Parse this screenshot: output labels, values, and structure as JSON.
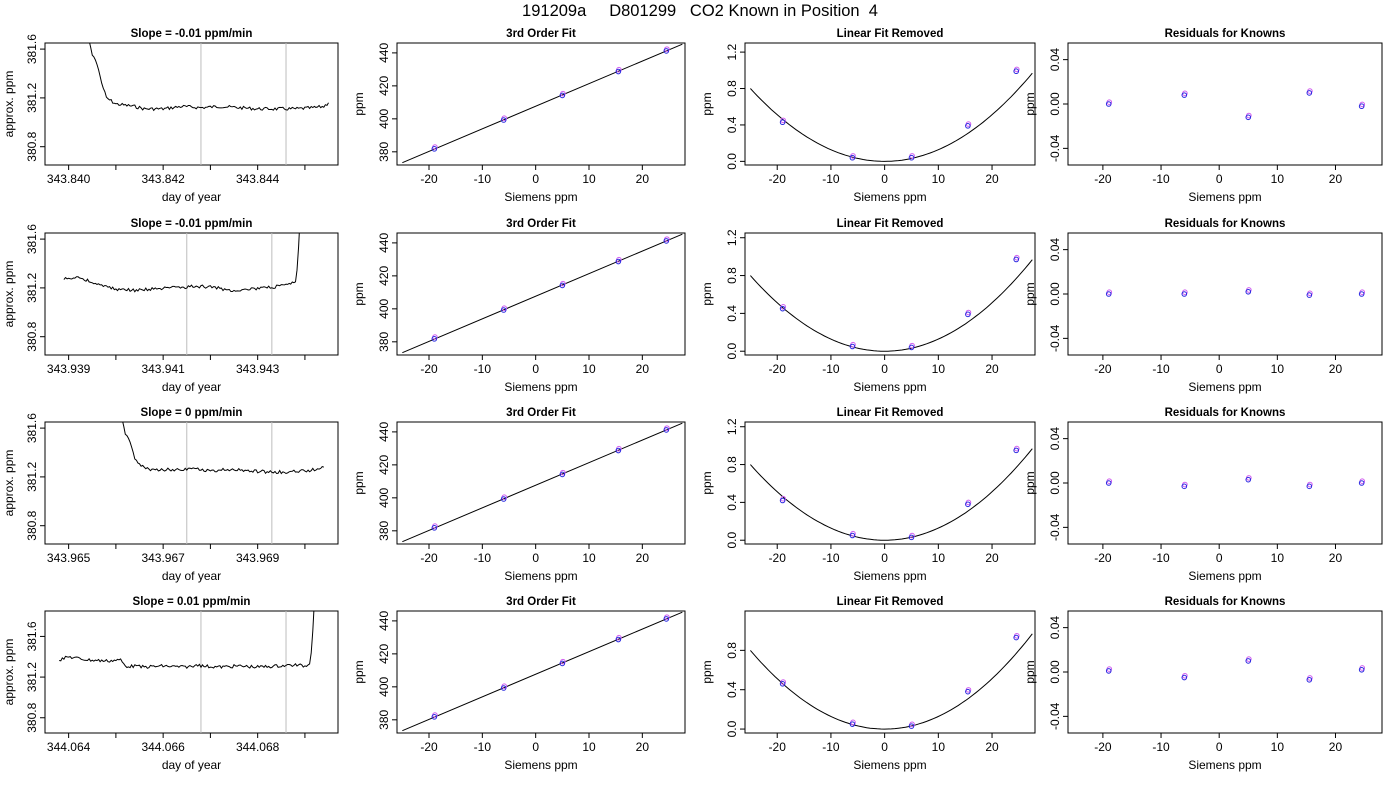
{
  "page": {
    "title": "191209a     D801299   CO2 Known in Position  4"
  },
  "chart_data": [
    {
      "type": "line",
      "title": "Slope =  -0.01  ppm/min",
      "xlabel": "day of year",
      "ylabel": "approx. ppm",
      "xlim": [
        343.8395,
        343.8457
      ],
      "ylim": [
        380.65,
        381.65
      ],
      "xticks": [
        343.84,
        343.841,
        343.842,
        343.843,
        343.844,
        343.845
      ],
      "xtick_labels": [
        "343.840",
        "",
        "343.842",
        "",
        "343.844",
        ""
      ],
      "yticks": [
        380.8,
        381.2,
        381.6
      ],
      "ytick_labels": [
        "380.8",
        "381.2",
        "381.6"
      ],
      "vlines": [
        343.8428,
        343.8446
      ],
      "x": [
        343.8403,
        343.8405,
        343.8407,
        343.8408,
        343.841,
        343.8412,
        343.8414,
        343.8416,
        343.842,
        343.8424,
        343.8428,
        343.8432,
        343.8436,
        343.844,
        343.8444,
        343.8448,
        343.8452,
        343.8454,
        343.8455
      ],
      "y": [
        381.8,
        381.55,
        381.32,
        381.2,
        381.15,
        381.14,
        381.13,
        381.11,
        381.11,
        381.13,
        381.12,
        381.13,
        381.12,
        381.11,
        381.11,
        381.11,
        381.12,
        381.13,
        381.16
      ]
    },
    {
      "type": "scatter",
      "title": "3rd Order Fit",
      "xlabel": "Siemens ppm",
      "ylabel": "ppm",
      "xlim": [
        -26,
        28
      ],
      "ylim": [
        372,
        446
      ],
      "xticks": [
        -20,
        -10,
        0,
        10,
        20
      ],
      "yticks": [
        380,
        400,
        420,
        440
      ],
      "fit_line": {
        "x": [
          -25,
          27.5
        ],
        "y": [
          373.4,
          445.3
        ]
      },
      "x": [
        -19,
        -6,
        5,
        15.5,
        24.5
      ],
      "y": [
        381.8,
        399.3,
        414.2,
        428.7,
        441.2
      ]
    },
    {
      "type": "scatter",
      "title": "Linear Fit Removed",
      "xlabel": "Siemens ppm",
      "ylabel": "ppm",
      "xlim": [
        -26,
        28
      ],
      "ylim": [
        -0.04,
        1.3
      ],
      "xticks": [
        -20,
        -10,
        0,
        10,
        20
      ],
      "yticks": [
        0.0,
        0.4,
        0.8,
        1.2
      ],
      "ytick_labels": [
        "0.0",
        "0.4",
        "0.8",
        "1.2"
      ],
      "curve": {
        "a": 0.00128,
        "b": 0.0065,
        "x0": -25,
        "x1": 27.5
      },
      "x": [
        -19,
        -6,
        5,
        15.5,
        24.5
      ],
      "y": [
        0.43,
        0.04,
        0.04,
        0.39,
        0.99
      ]
    },
    {
      "type": "scatter",
      "title": "Residuals for Knowns",
      "xlabel": "Siemens ppm",
      "ylabel": "ppm",
      "xlim": [
        -26,
        28
      ],
      "ylim": [
        -0.055,
        0.055
      ],
      "xticks": [
        -20,
        -10,
        0,
        10,
        20
      ],
      "yticks": [
        -0.04,
        0.0,
        0.04
      ],
      "ytick_labels": [
        "-0.04",
        "0.00",
        "0.04"
      ],
      "x": [
        -19,
        -6,
        5,
        15.5,
        24.5
      ],
      "y": [
        0.0,
        0.008,
        -0.012,
        0.01,
        -0.002
      ]
    },
    {
      "type": "line",
      "title": "Slope =  -0.01  ppm/min",
      "xlabel": "day of year",
      "ylabel": "approx. ppm",
      "xlim": [
        343.9385,
        343.9447
      ],
      "ylim": [
        380.65,
        381.65
      ],
      "xticks": [
        343.939,
        343.94,
        343.941,
        343.942,
        343.943,
        343.944
      ],
      "xtick_labels": [
        "343.939",
        "",
        "343.941",
        "",
        "343.943",
        ""
      ],
      "yticks": [
        380.8,
        381.2,
        381.6
      ],
      "ytick_labels": [
        "380.8",
        "381.2",
        "381.6"
      ],
      "vlines": [
        343.9415,
        343.9433
      ],
      "x": [
        343.9389,
        343.9392,
        343.9396,
        343.94,
        343.9404,
        343.9408,
        343.9412,
        343.9416,
        343.942,
        343.9424,
        343.9428,
        343.9432,
        343.9436,
        343.9438,
        343.9439
      ],
      "y": [
        381.27,
        381.29,
        381.23,
        381.19,
        381.18,
        381.19,
        381.2,
        381.21,
        381.21,
        381.18,
        381.19,
        381.2,
        381.22,
        381.25,
        381.8
      ]
    },
    {
      "type": "scatter",
      "title": "3rd Order Fit",
      "xlabel": "Siemens ppm",
      "ylabel": "ppm",
      "xlim": [
        -26,
        28
      ],
      "ylim": [
        372,
        446
      ],
      "xticks": [
        -20,
        -10,
        0,
        10,
        20
      ],
      "yticks": [
        380,
        400,
        420,
        440
      ],
      "fit_line": {
        "x": [
          -25,
          27.5
        ],
        "y": [
          373.4,
          445.3
        ]
      },
      "x": [
        -19,
        -6,
        5,
        15.5,
        24.5
      ],
      "y": [
        381.8,
        399.3,
        414.2,
        428.7,
        441.2
      ]
    },
    {
      "type": "scatter",
      "title": "Linear Fit Removed",
      "xlabel": "Siemens ppm",
      "ylabel": "ppm",
      "xlim": [
        -26,
        28
      ],
      "ylim": [
        -0.04,
        1.25
      ],
      "xticks": [
        -20,
        -10,
        0,
        10,
        20
      ],
      "yticks": [
        0.0,
        0.4,
        0.8,
        1.2
      ],
      "ytick_labels": [
        "0.0",
        "0.4",
        "0.8",
        "1.2"
      ],
      "curve": {
        "a": 0.00128,
        "b": 0.0065,
        "x0": -25,
        "x1": 27.5
      },
      "x": [
        -19,
        -6,
        5,
        15.5,
        24.5
      ],
      "y": [
        0.45,
        0.05,
        0.04,
        0.39,
        0.97
      ]
    },
    {
      "type": "scatter",
      "title": "Residuals for Knowns",
      "xlabel": "Siemens ppm",
      "ylabel": "ppm",
      "xlim": [
        -26,
        28
      ],
      "ylim": [
        -0.055,
        0.055
      ],
      "xticks": [
        -20,
        -10,
        0,
        10,
        20
      ],
      "yticks": [
        -0.04,
        0.0,
        0.04
      ],
      "ytick_labels": [
        "-0.04",
        "0.00",
        "0.04"
      ],
      "x": [
        -19,
        -6,
        5,
        15.5,
        24.5
      ],
      "y": [
        0.0,
        0.0,
        0.002,
        -0.001,
        0.0
      ]
    },
    {
      "type": "line",
      "title": "Slope =  0  ppm/min",
      "xlabel": "day of year",
      "ylabel": "approx. ppm",
      "xlim": [
        343.9645,
        343.9707
      ],
      "ylim": [
        380.65,
        381.65
      ],
      "xticks": [
        343.965,
        343.966,
        343.967,
        343.968,
        343.969,
        343.97
      ],
      "xtick_labels": [
        "343.965",
        "",
        "343.967",
        "",
        "343.969",
        ""
      ],
      "yticks": [
        380.8,
        381.2,
        381.6
      ],
      "ytick_labels": [
        "380.8",
        "381.2",
        "381.6"
      ],
      "vlines": [
        343.9675,
        343.9693
      ],
      "x": [
        343.966,
        343.9662,
        343.9664,
        343.9666,
        343.9668,
        343.9672,
        343.9676,
        343.968,
        343.9684,
        343.9688,
        343.9692,
        343.9696,
        343.97,
        343.9702,
        343.9704
      ],
      "y": [
        381.8,
        381.55,
        381.35,
        381.27,
        381.26,
        381.26,
        381.27,
        381.25,
        381.26,
        381.25,
        381.24,
        381.24,
        381.25,
        381.26,
        381.28
      ]
    },
    {
      "type": "scatter",
      "title": "3rd Order Fit",
      "xlabel": "Siemens ppm",
      "ylabel": "ppm",
      "xlim": [
        -26,
        28
      ],
      "ylim": [
        372,
        446
      ],
      "xticks": [
        -20,
        -10,
        0,
        10,
        20
      ],
      "yticks": [
        380,
        400,
        420,
        440
      ],
      "fit_line": {
        "x": [
          -25,
          27.5
        ],
        "y": [
          373.4,
          445.3
        ]
      },
      "x": [
        -19,
        -6,
        5,
        15.5,
        24.5
      ],
      "y": [
        381.8,
        399.3,
        414.2,
        428.7,
        441.2
      ]
    },
    {
      "type": "scatter",
      "title": "Linear Fit Removed",
      "xlabel": "Siemens ppm",
      "ylabel": "ppm",
      "xlim": [
        -26,
        28
      ],
      "ylim": [
        -0.04,
        1.25
      ],
      "xticks": [
        -20,
        -10,
        0,
        10,
        20
      ],
      "yticks": [
        0.0,
        0.4,
        0.8,
        1.2
      ],
      "ytick_labels": [
        "0.0",
        "0.4",
        "0.8",
        "1.2"
      ],
      "curve": {
        "a": 0.00128,
        "b": 0.0065,
        "x0": -25,
        "x1": 27.5
      },
      "x": [
        -19,
        -6,
        5,
        15.5,
        24.5
      ],
      "y": [
        0.42,
        0.05,
        0.03,
        0.38,
        0.95
      ]
    },
    {
      "type": "scatter",
      "title": "Residuals for Knowns",
      "xlabel": "Siemens ppm",
      "ylabel": "ppm",
      "xlim": [
        -26,
        28
      ],
      "ylim": [
        -0.055,
        0.055
      ],
      "xticks": [
        -20,
        -10,
        0,
        10,
        20
      ],
      "yticks": [
        -0.04,
        0.0,
        0.04
      ],
      "ytick_labels": [
        "-0.04",
        "0.00",
        "0.04"
      ],
      "x": [
        -19,
        -6,
        5,
        15.5,
        24.5
      ],
      "y": [
        0.0,
        -0.003,
        0.003,
        -0.003,
        0.0
      ]
    },
    {
      "type": "line",
      "title": "Slope =  0.01  ppm/min",
      "xlabel": "day of year",
      "ylabel": "approx. ppm",
      "xlim": [
        344.0635,
        344.0697
      ],
      "ylim": [
        380.65,
        381.85
      ],
      "xticks": [
        344.064,
        344.065,
        344.066,
        344.067,
        344.068,
        344.069
      ],
      "xtick_labels": [
        "344.064",
        "",
        "344.066",
        "",
        "344.068",
        ""
      ],
      "yticks": [
        380.8,
        381.2,
        381.6
      ],
      "ytick_labels": [
        "380.8",
        "381.2",
        "381.6"
      ],
      "vlines": [
        344.0668,
        344.0686
      ],
      "x": [
        344.0638,
        344.064,
        344.0644,
        344.0648,
        344.0651,
        344.0652,
        344.0656,
        344.066,
        344.0664,
        344.0668,
        344.0672,
        344.0676,
        344.068,
        344.0684,
        344.0688,
        344.069,
        344.0691,
        344.0692
      ],
      "y": [
        381.37,
        381.4,
        381.37,
        381.36,
        381.37,
        381.31,
        381.3,
        381.31,
        381.3,
        381.31,
        381.3,
        381.31,
        381.3,
        381.31,
        381.32,
        381.31,
        381.33,
        381.95
      ]
    },
    {
      "type": "scatter",
      "title": "3rd Order Fit",
      "xlabel": "Siemens ppm",
      "ylabel": "ppm",
      "xlim": [
        -26,
        28
      ],
      "ylim": [
        372,
        446
      ],
      "xticks": [
        -20,
        -10,
        0,
        10,
        20
      ],
      "yticks": [
        380,
        400,
        420,
        440
      ],
      "fit_line": {
        "x": [
          -25,
          27.5
        ],
        "y": [
          373.4,
          445.3
        ]
      },
      "x": [
        -19,
        -6,
        5,
        15.5,
        24.5
      ],
      "y": [
        381.8,
        399.3,
        414.2,
        428.7,
        441.2
      ]
    },
    {
      "type": "scatter",
      "title": "Linear Fit Removed",
      "xlabel": "Siemens ppm",
      "ylabel": "ppm",
      "xlim": [
        -26,
        28
      ],
      "ylim": [
        -0.04,
        1.2
      ],
      "xticks": [
        -20,
        -10,
        0,
        10,
        20
      ],
      "yticks": [
        0.0,
        0.4,
        0.8
      ],
      "ytick_labels": [
        "0.0",
        "0.4",
        "0.8"
      ],
      "curve": {
        "a": 0.00128,
        "b": 0.0065,
        "x0": -25,
        "x1": 27.5
      },
      "x": [
        -19,
        -6,
        5,
        15.5,
        24.5
      ],
      "y": [
        0.46,
        0.05,
        0.03,
        0.38,
        0.93
      ]
    },
    {
      "type": "scatter",
      "title": "Residuals for Knowns",
      "xlabel": "Siemens ppm",
      "ylabel": "ppm",
      "xlim": [
        -26,
        28
      ],
      "ylim": [
        -0.055,
        0.055
      ],
      "xticks": [
        -20,
        -10,
        0,
        10,
        20
      ],
      "yticks": [
        -0.04,
        0.0,
        0.04
      ],
      "ytick_labels": [
        "-0.04",
        "0.00",
        "0.04"
      ],
      "x": [
        -19,
        -6,
        5,
        15.5,
        24.5
      ],
      "y": [
        0.001,
        -0.005,
        0.01,
        -0.007,
        0.002
      ]
    }
  ]
}
